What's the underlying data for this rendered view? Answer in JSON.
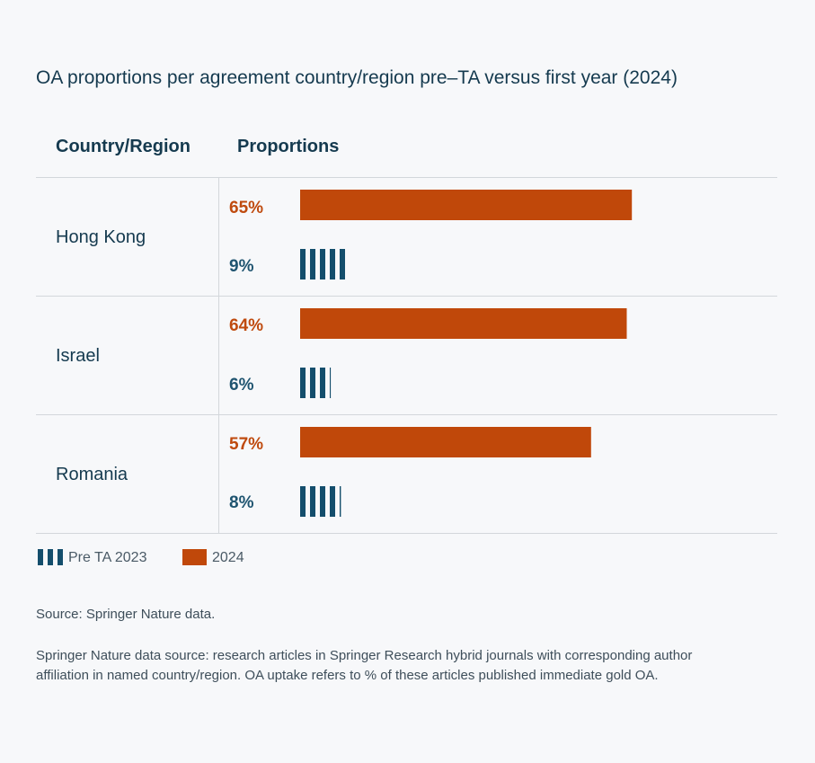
{
  "chart_data": {
    "type": "bar",
    "title": "OA proportions per agreement country/region pre–TA versus first year (2024)",
    "column_headers": [
      "Country/Region",
      "Proportions"
    ],
    "categories": [
      "Hong Kong",
      "Israel",
      "Romania"
    ],
    "series": [
      {
        "name": "2024",
        "values": [
          65,
          64,
          57
        ],
        "labels": [
          "65%",
          "64%",
          "57%"
        ],
        "color": "#c0480a"
      },
      {
        "name": "Pre TA 2023",
        "values": [
          9,
          6,
          8
        ],
        "labels": [
          "9%",
          "6%",
          "8%"
        ],
        "color": "#144e6c"
      }
    ],
    "unit": "%",
    "ylim": [
      0,
      100
    ],
    "legend": [
      "Pre TA 2023",
      "2024"
    ]
  },
  "footnotes": {
    "source": "Source: Springer Nature data.",
    "note_line1": "Springer Nature data source: research articles in Springer Research hybrid journals with corresponding author",
    "note_line2": "affiliation in named country/region. OA uptake refers to % of these articles published immediate gold OA."
  }
}
